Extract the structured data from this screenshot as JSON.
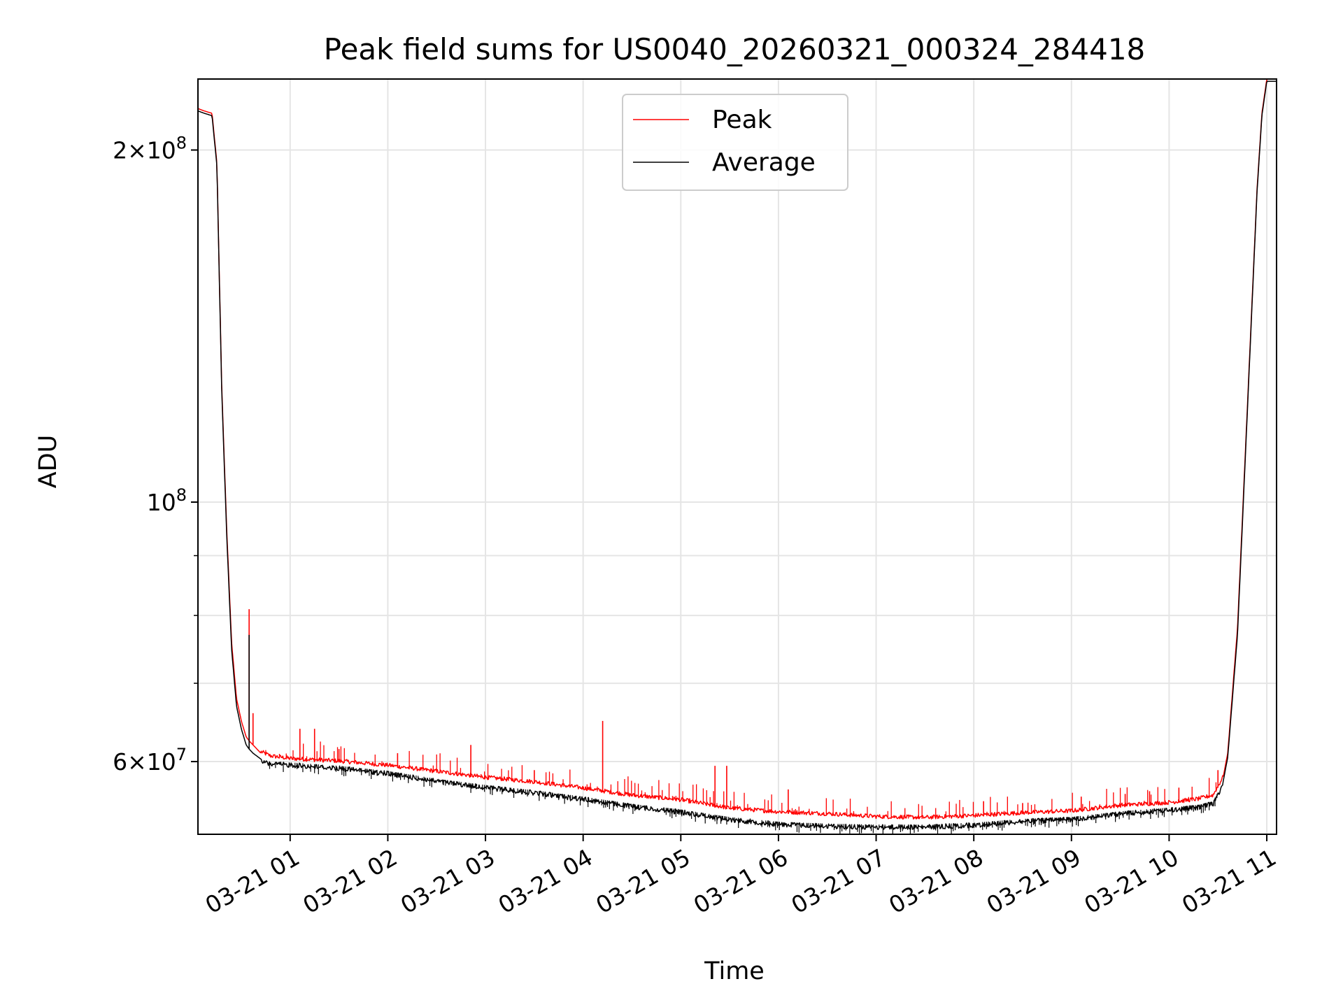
{
  "chart_data": {
    "type": "line",
    "title": "Peak field sums for US0040_20260321_000324_284418",
    "xlabel": "Time",
    "ylabel": "ADU",
    "yscale": "log",
    "xlim_hours": [
      0.056,
      11.1
    ],
    "ylim": [
      52000000,
      230000000
    ],
    "grid": true,
    "legend_position": "upper center",
    "x_ticks": [
      {
        "hour": 1,
        "label": "03-21 01"
      },
      {
        "hour": 2,
        "label": "03-21 02"
      },
      {
        "hour": 3,
        "label": "03-21 03"
      },
      {
        "hour": 4,
        "label": "03-21 04"
      },
      {
        "hour": 5,
        "label": "03-21 05"
      },
      {
        "hour": 6,
        "label": "03-21 06"
      },
      {
        "hour": 7,
        "label": "03-21 07"
      },
      {
        "hour": 8,
        "label": "03-21 08"
      },
      {
        "hour": 9,
        "label": "03-21 09"
      },
      {
        "hour": 10,
        "label": "03-21 10"
      },
      {
        "hour": 11,
        "label": "03-21 11"
      }
    ],
    "y_major_ticks": [
      {
        "value": 60000000,
        "mantissa": "6",
        "exponent": "7"
      },
      {
        "value": 100000000,
        "mantissa": "",
        "exponent": "8"
      },
      {
        "value": 200000000,
        "mantissa": "2",
        "exponent": "8"
      }
    ],
    "y_minor_ticks": [
      70000000,
      80000000,
      90000000
    ],
    "series": [
      {
        "name": "Peak",
        "color": "#ff0000",
        "x_hours": [
          0.056,
          0.12,
          0.2,
          0.25,
          0.3,
          0.35,
          0.4,
          0.45,
          0.5,
          0.55,
          0.58,
          0.62,
          0.7,
          0.8,
          1.0,
          1.5,
          2.0,
          2.5,
          3.0,
          3.5,
          4.0,
          4.5,
          5.0,
          5.5,
          6.0,
          6.5,
          7.0,
          7.5,
          8.0,
          8.5,
          9.0,
          9.5,
          10.0,
          10.3,
          10.45,
          10.55,
          10.6,
          10.7,
          10.8,
          10.9,
          10.95,
          11.0,
          11.1
        ],
        "values": [
          217000000,
          216000000,
          215000000,
          195000000,
          125000000,
          95000000,
          76000000,
          68000000,
          65000000,
          63000000,
          62500000,
          62000000,
          61000000,
          60500000,
          60200000,
          59900000,
          59400000,
          58700000,
          58000000,
          57500000,
          56800000,
          56000000,
          55500000,
          54600000,
          54200000,
          54000000,
          53700000,
          53600000,
          53800000,
          54100000,
          54300000,
          54900000,
          55200000,
          55600000,
          56000000,
          58000000,
          61000000,
          78000000,
          120000000,
          185000000,
          215000000,
          230000000,
          230000000
        ],
        "spikes": [
          {
            "hour": 0.58,
            "value": 81000000
          },
          {
            "hour": 0.62,
            "value": 66000000
          },
          {
            "hour": 1.1,
            "value": 64000000
          },
          {
            "hour": 1.25,
            "value": 64000000
          },
          {
            "hour": 1.5,
            "value": 61500000
          },
          {
            "hour": 2.1,
            "value": 61000000
          },
          {
            "hour": 2.85,
            "value": 62000000
          },
          {
            "hour": 3.5,
            "value": 59000000
          },
          {
            "hour": 4.2,
            "value": 65000000
          },
          {
            "hour": 5.35,
            "value": 59500000
          },
          {
            "hour": 5.47,
            "value": 59500000
          },
          {
            "hour": 6.1,
            "value": 56800000
          },
          {
            "hour": 8.1,
            "value": 55500000
          },
          {
            "hour": 8.5,
            "value": 55300000
          },
          {
            "hour": 9.1,
            "value": 56000000
          },
          {
            "hour": 9.55,
            "value": 56300000
          },
          {
            "hour": 9.8,
            "value": 56600000
          },
          {
            "hour": 10.1,
            "value": 57000000
          },
          {
            "hour": 10.5,
            "value": 59000000
          }
        ]
      },
      {
        "name": "Average",
        "color": "#000000",
        "x_hours": [
          0.056,
          0.12,
          0.2,
          0.25,
          0.3,
          0.35,
          0.4,
          0.45,
          0.5,
          0.55,
          0.58,
          0.62,
          0.7,
          0.8,
          1.0,
          1.5,
          2.0,
          2.5,
          3.0,
          3.5,
          4.0,
          4.5,
          5.0,
          5.5,
          6.0,
          6.5,
          7.0,
          7.5,
          8.0,
          8.5,
          9.0,
          9.5,
          10.0,
          10.3,
          10.45,
          10.55,
          10.6,
          10.7,
          10.8,
          10.9,
          10.95,
          11.0,
          11.1
        ],
        "values": [
          216000000,
          215000000,
          214000000,
          194000000,
          124000000,
          94000000,
          75000000,
          67000000,
          64000000,
          62000000,
          61500000,
          61000000,
          60300000,
          60000000,
          59900000,
          59500000,
          58900000,
          58000000,
          57300000,
          56700000,
          56000000,
          55200000,
          54600000,
          53800000,
          53300000,
          53100000,
          53000000,
          53000000,
          53200000,
          53600000,
          53800000,
          54400000,
          54800000,
          55100000,
          55500000,
          57500000,
          60500000,
          77000000,
          119000000,
          184000000,
          214000000,
          229000000,
          229000000
        ]
      }
    ]
  }
}
